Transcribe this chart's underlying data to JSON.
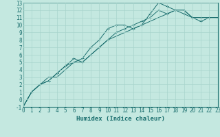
{
  "title": "",
  "xlabel": "Humidex (Indice chaleur)",
  "ylabel": "",
  "bg_color": "#c4e8e0",
  "grid_color": "#a8d4cc",
  "line_color": "#1a6e6e",
  "xlim": [
    0,
    23
  ],
  "ylim": [
    -1,
    13
  ],
  "xticks": [
    0,
    1,
    2,
    3,
    4,
    5,
    6,
    7,
    8,
    9,
    10,
    11,
    12,
    13,
    14,
    15,
    16,
    17,
    18,
    19,
    20,
    21,
    22,
    23
  ],
  "yticks": [
    -1,
    0,
    1,
    2,
    3,
    4,
    5,
    6,
    7,
    8,
    9,
    10,
    11,
    12,
    13
  ],
  "line1_x": [
    0,
    1,
    2,
    3,
    4,
    5,
    6,
    7,
    8,
    9,
    10,
    11,
    12,
    13,
    14,
    15,
    16,
    17,
    18,
    19,
    20,
    21,
    22,
    23
  ],
  "line1_y": [
    -1,
    1,
    2,
    3,
    3,
    4,
    5,
    5,
    6,
    7,
    8,
    8.5,
    9,
    9.5,
    10,
    10.5,
    11,
    11.5,
    12,
    12,
    11,
    11,
    11,
    11
  ],
  "line2_x": [
    0,
    1,
    2,
    3,
    4,
    5,
    6,
    7,
    8,
    9,
    10,
    11,
    12,
    13,
    14,
    15,
    16,
    17,
    18,
    19,
    20,
    21,
    22,
    23
  ],
  "line2_y": [
    -1,
    1,
    2,
    2.5,
    3.5,
    4.5,
    5,
    5.5,
    7,
    8,
    9.5,
    10,
    10,
    9.5,
    10,
    11.5,
    13,
    12.5,
    12,
    11.5,
    11,
    10.5,
    11,
    11
  ],
  "line3_x": [
    0,
    1,
    2,
    3,
    4,
    5,
    6,
    7,
    8,
    9,
    10,
    11,
    12,
    13,
    14,
    15,
    16,
    17,
    18,
    19,
    20,
    21,
    22,
    23
  ],
  "line3_y": [
    -1,
    1,
    2,
    2.5,
    3.5,
    4.5,
    5.5,
    5,
    6,
    7,
    8,
    9,
    9.5,
    10,
    10.5,
    11,
    12,
    11.5,
    12,
    12,
    11,
    11,
    11,
    11
  ],
  "label_fontsize": 5.5,
  "xlabel_fontsize": 6.5
}
